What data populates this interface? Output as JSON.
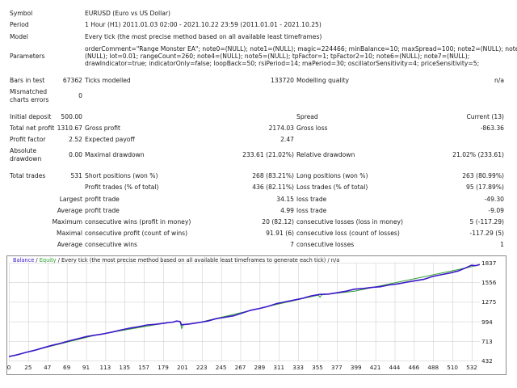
{
  "report": {
    "symbol_label": "Symbol",
    "symbol_value": "EURUSD (Euro vs US Dollar)",
    "period_label": "Period",
    "period_value": "1 Hour (H1) 2011.01.03 02:00 - 2021.10.22 23:59 (2011.01.01 - 2021.10.25)",
    "model_label": "Model",
    "model_value": "Every tick (the most precise method based on all available least timeframes)",
    "parameters_label": "Parameters",
    "parameters_lines": [
      "orderComment=\"Range Monster EA\"; note0=(NULL); note1=(NULL); magic=224466; minBalance=10; maxSpread=100; note2=(NULL); note3=",
      "(NULL); lot=0.01; rangeCount=260; note4=(NULL); note5=(NULL); tpFactor=1; tpFactor2=10; note6=(NULL); note7=(NULL);",
      "drawIndicator=true; indicatorOnly=false; loopBack=50; rsiPeriod=14; maPeriod=30; oscillatorSensitivity=4; priceSensitivity=5;"
    ],
    "bars_label": "Bars in test",
    "bars_value": "67362",
    "ticks_label": "Ticks modelled",
    "ticks_value": "133720",
    "quality_label": "Modelling quality",
    "quality_value": "n/a",
    "mismatched_label_1": "Mismatched",
    "mismatched_label_2": "charts errors",
    "mismatched_value": "0",
    "initial_deposit_label": "Initial deposit",
    "initial_deposit_value": "500.00",
    "spread_label": "Spread",
    "spread_value": "Current (13)",
    "net_profit_label": "Total net profit",
    "net_profit_value": "1310.67",
    "gross_profit_label": "Gross profit",
    "gross_profit_value": "2174.03",
    "gross_loss_label": "Gross loss",
    "gross_loss_value": "-863.36",
    "profit_factor_label": "Profit factor",
    "profit_factor_value": "2.52",
    "expected_payoff_label": "Expected payoff",
    "expected_payoff_value": "2.47",
    "absolute_label_1": "Absolute",
    "absolute_label_2": "drawdown",
    "absolute_value": "0.00",
    "maximal_dd_label": "Maximal drawdown",
    "maximal_dd_value": "233.61 (21.02%)",
    "relative_dd_label": "Relative drawdown",
    "relative_dd_value": "21.02% (233.61)",
    "total_trades_label": "Total trades",
    "total_trades_value": "531",
    "short_label": "Short positions (won %)",
    "short_value": "268 (83.21%)",
    "long_label": "Long positions (won %)",
    "long_value": "263 (80.99%)",
    "profit_trades_label": "Profit trades (% of total)",
    "profit_trades_value": "436 (82.11%)",
    "loss_trades_label": "Loss trades (% of total)",
    "loss_trades_value": "95 (17.89%)",
    "largest_label": "Largest",
    "largest_profit_label": "profit trade",
    "largest_profit_value": "34.15",
    "largest_loss_label": "loss trade",
    "largest_loss_value": "-49.30",
    "average_label": "Average",
    "average_profit_label": "profit trade",
    "average_profit_value": "4.99",
    "average_loss_label": "loss trade",
    "average_loss_value": "-9.09",
    "maximum_label": "Maximum",
    "max_cons_wins_label": "consecutive wins (profit in money)",
    "max_cons_wins_value": "20 (82.12)",
    "max_cons_losses_label": "consecutive losses (loss in money)",
    "max_cons_losses_value": "5 (-117.29)",
    "maximal_label": "Maximal",
    "maximal_cons_profit_label": "consecutive profit (count of wins)",
    "maximal_cons_profit_value": "91.91 (6)",
    "maximal_cons_loss_label": "consecutive loss (count of losses)",
    "maximal_cons_loss_value": "-117.29 (5)",
    "average2_label": "Average",
    "avg_cons_wins_label": "consecutive wins",
    "avg_cons_wins_value": "7",
    "avg_cons_losses_label": "consecutive losses",
    "avg_cons_losses_value": "1"
  },
  "chart_title": {
    "balance": "Balance",
    "sep1": " / ",
    "equity": "Equity",
    "rest": " / Every tick (the most precise method based on all available least timeframes to generate each tick) / n/a"
  },
  "colors": {
    "balance": "#3b17c9",
    "equity": "#2ea02e",
    "grid": "#c8c8c8"
  },
  "chart_data": {
    "type": "line",
    "title": "Balance / Equity / Every tick (the most precise method based on all available least timeframes to generate each tick) / n/a",
    "xlabel": "",
    "ylabel": "",
    "grid": true,
    "x_ticks": [
      "0",
      "25",
      "47",
      "69",
      "91",
      "113",
      "135",
      "157",
      "179",
      "201",
      "223",
      "245",
      "267",
      "289",
      "311",
      "333",
      "355",
      "377",
      "399",
      "421",
      "444",
      "466",
      "488",
      "510",
      "532"
    ],
    "y_ticks": [
      "1837",
      "1556",
      "1275",
      "994",
      "713",
      "432"
    ],
    "xlim": [
      0,
      545
    ],
    "ylim": [
      432,
      1837
    ],
    "series": [
      {
        "name": "Balance",
        "x": [
          0,
          10,
          20,
          30,
          40,
          50,
          60,
          70,
          80,
          90,
          100,
          110,
          120,
          130,
          140,
          150,
          160,
          170,
          180,
          185,
          190,
          194,
          198,
          200,
          202,
          210,
          220,
          230,
          240,
          250,
          260,
          270,
          280,
          290,
          300,
          310,
          320,
          330,
          340,
          350,
          360,
          370,
          380,
          390,
          400,
          410,
          420,
          430,
          440,
          450,
          460,
          470,
          480,
          490,
          500,
          510,
          520,
          530,
          535,
          540,
          545
        ],
        "y": [
          500,
          525,
          560,
          590,
          625,
          660,
          690,
          725,
          755,
          785,
          805,
          825,
          850,
          880,
          905,
          925,
          950,
          960,
          975,
          985,
          990,
          1005,
          1000,
          950,
          955,
          965,
          985,
          1005,
          1040,
          1060,
          1080,
          1120,
          1160,
          1185,
          1215,
          1255,
          1280,
          1305,
          1330,
          1365,
          1385,
          1390,
          1410,
          1430,
          1460,
          1470,
          1485,
          1495,
          1520,
          1535,
          1560,
          1580,
          1600,
          1640,
          1665,
          1690,
          1720,
          1770,
          1800,
          1795,
          1810
        ]
      },
      {
        "name": "Equity",
        "x": [
          0,
          100,
          180,
          185,
          190,
          194,
          198,
          200,
          202,
          220,
          300,
          358,
          360,
          362,
          400,
          532,
          545
        ],
        "y": [
          500,
          805,
          975,
          985,
          990,
          1005,
          1000,
          900,
          955,
          985,
          1215,
          1375,
          1345,
          1380,
          1430,
          1770,
          1810
        ]
      }
    ]
  }
}
